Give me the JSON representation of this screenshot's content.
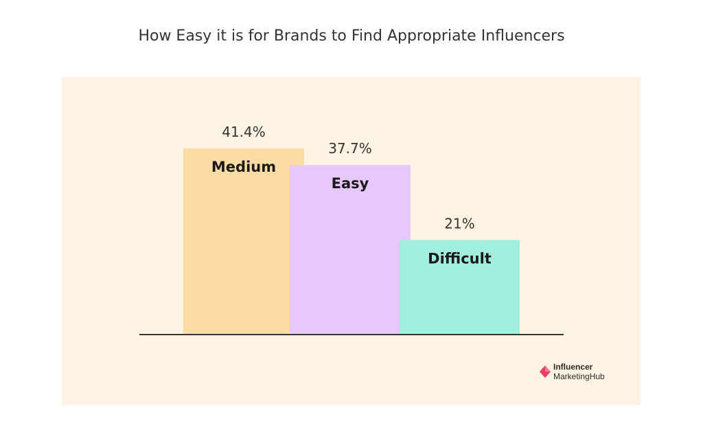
{
  "chart_data": {
    "type": "bar",
    "title": "How Easy it is for Brands to Find Appropriate Influencers",
    "categories": [
      "Medium",
      "Easy",
      "Difficult"
    ],
    "values": [
      41.4,
      37.7,
      21
    ],
    "value_labels": [
      "41.4%",
      "37.7%",
      "21%"
    ],
    "colors": [
      "#fddba5",
      "#e6c8fc",
      "#a1eedd"
    ],
    "ylim": [
      0,
      41.4
    ],
    "grid": false,
    "legend": "none"
  },
  "logo": {
    "line1": "Influencer",
    "line2": "MarketingHub",
    "color": "#e83e66"
  }
}
